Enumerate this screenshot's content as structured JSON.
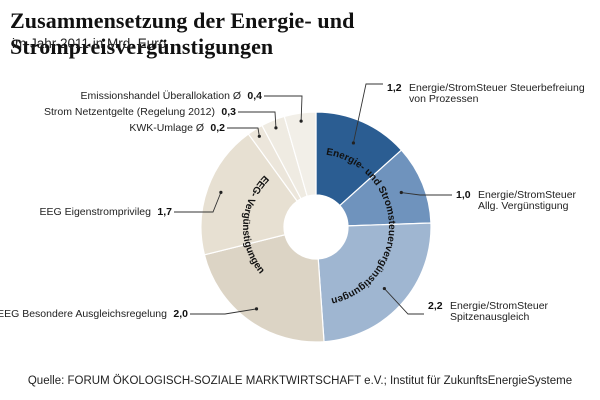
{
  "chart_data": {
    "type": "pie",
    "title": "Zusammensetzung der Energie- und Strompreisvergünstigungen",
    "subtitle": "im Jahr 2011 in Mrd. Euro",
    "source": "Quelle: FORUM ÖKOLOGISCH-SOZIALE MARKTWIRTSCHAFT e.V.; Institut für ZukunftsEnergieSysteme",
    "groups": [
      {
        "name": "Energie- und Stromsteuervergünstigungen"
      },
      {
        "name": "EEG- Vergünstigungen"
      }
    ],
    "slices": [
      {
        "label_lines": [
          "Energie/StromSteuer Steuerbefreiung",
          "von Prozessen"
        ],
        "value": 1.2,
        "value_text": "1,2",
        "group": 0,
        "color": "#2b5d92"
      },
      {
        "label_lines": [
          "Energie/StromSteuer",
          "Allg. Vergünstigung"
        ],
        "value": 1.0,
        "value_text": "1,0",
        "group": 0,
        "color": "#6f93bd"
      },
      {
        "label_lines": [
          "Energie/StromSteuer",
          "Spitzenausgleich"
        ],
        "value": 2.2,
        "value_text": "2,2",
        "group": 0,
        "color": "#9fb6d1"
      },
      {
        "label_lines": [
          "EEG Besondere Ausgleichsregelung"
        ],
        "value": 2.0,
        "value_text": "2,0",
        "group": 1,
        "color": "#dcd4c5"
      },
      {
        "label_lines": [
          "EEG Eigenstromprivileg"
        ],
        "value": 1.7,
        "value_text": "1,7",
        "group": 1,
        "color": "#e7e0d2"
      },
      {
        "label_lines": [
          "KWK-Umlage Ø"
        ],
        "value": 0.2,
        "value_text": "0,2",
        "group": 1,
        "color": "#ece6db"
      },
      {
        "label_lines": [
          "Strom Netzentgelte  (Regelung 2012)"
        ],
        "value": 0.3,
        "value_text": "0,3",
        "group": 1,
        "color": "#efebe2"
      },
      {
        "label_lines": [
          "Emissionshandel Überallokation Ø"
        ],
        "value": 0.4,
        "value_text": "0,4",
        "group": 1,
        "color": "#f2efe8"
      }
    ]
  }
}
